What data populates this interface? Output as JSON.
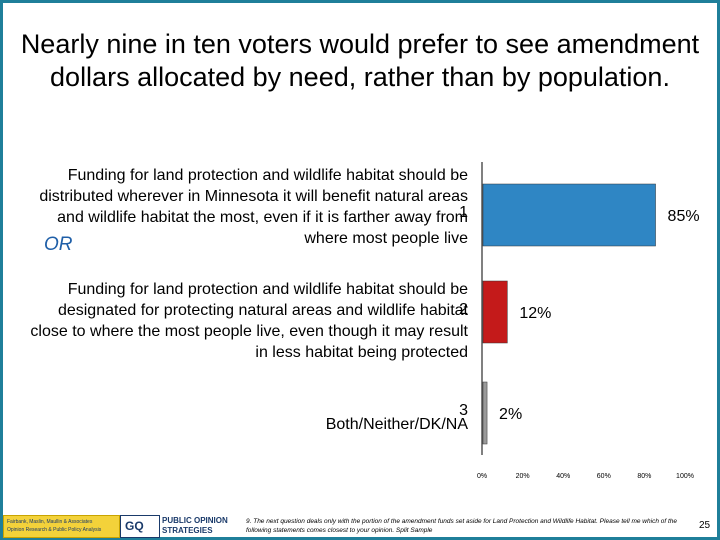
{
  "title": "Nearly nine in ten voters would prefer to see amendment dollars allocated by need, rather than by population.",
  "labels": {
    "option1": "Funding for land protection and wildlife habitat should be distributed wherever in Minnesota it will benefit natural areas and wildlife habitat the most, even if it is farther away from where most people live",
    "or": "OR",
    "option2": "Funding for land protection and wildlife habitat should be designated for protecting natural areas and wildlife habitat close to where the most people live, even though it may result in less habitat being protected",
    "option3": "Both/Neither/DK/NA"
  },
  "chart_data": {
    "type": "bar",
    "orientation": "horizontal",
    "categories": [
      "1",
      "2",
      "3"
    ],
    "values": [
      85,
      12,
      2
    ],
    "value_labels": [
      "85%",
      "12%",
      "2%"
    ],
    "xlim": [
      0,
      100
    ],
    "xticks": [
      "0%",
      "20%",
      "40%",
      "60%",
      "80%",
      "100%"
    ],
    "colors": [
      "#2f86c4",
      "#c41a1a",
      "#9a9a9a"
    ],
    "grid": false
  },
  "footer": {
    "note": "9. The next question deals only with the portion of the amendment funds set aside for Land Protection and Wildlife Habitat. Please tell me which of the following statements comes closest to your opinion. Split Sample",
    "page_number": "25",
    "logo1_line1": "Fairbank, Maslin, Maullin & Associates",
    "logo1_line2": "Opinion Research & Public Policy Analysis",
    "logo2": "GQ",
    "logo3_line1": "PUBLIC OPINION",
    "logo3_line2": "STRATEGIES"
  }
}
